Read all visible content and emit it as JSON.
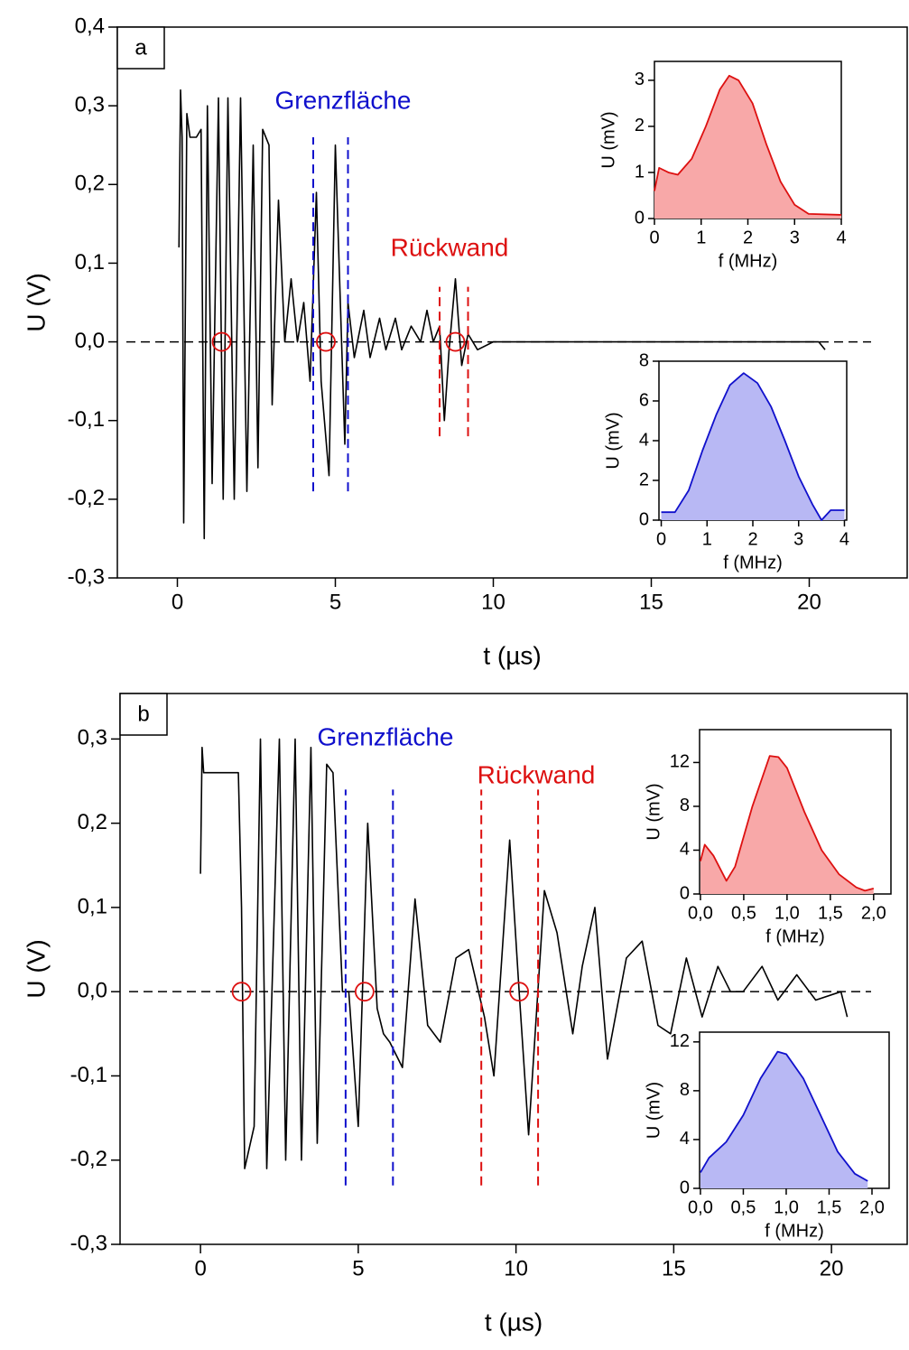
{
  "chart_data": [
    {
      "type": "line",
      "panel_label": "a",
      "xlabel": "t (µs)",
      "ylabel": "U (V)",
      "xlim": [
        -1.9,
        23.1
      ],
      "ylim": [
        -0.3,
        0.4
      ],
      "xticks": [
        0,
        5,
        10,
        15,
        20
      ],
      "yticks": [
        {
          "value": -0.3,
          "label": "-0,3"
        },
        {
          "value": -0.2,
          "label": "-0,2"
        },
        {
          "value": -0.1,
          "label": "-0,1"
        },
        {
          "value": 0,
          "label": "0,0"
        },
        {
          "value": 0.1,
          "label": "0,1"
        },
        {
          "value": 0.2,
          "label": "0,2"
        },
        {
          "value": 0.3,
          "label": "0,3"
        },
        {
          "value": 0.4,
          "label": "0,4"
        }
      ],
      "zero_line": true,
      "x": [
        0.05,
        0.1,
        0.15,
        0.2,
        0.3,
        0.4,
        0.6,
        0.75,
        0.85,
        0.95,
        1.1,
        1.3,
        1.45,
        1.6,
        1.8,
        2.0,
        2.2,
        2.4,
        2.55,
        2.7,
        2.9,
        3.0,
        3.2,
        3.4,
        3.6,
        3.8,
        4.0,
        4.2,
        4.4,
        4.55,
        4.8,
        5.0,
        5.3,
        5.4,
        5.6,
        5.9,
        6.1,
        6.4,
        6.6,
        6.9,
        7.1,
        7.4,
        7.7,
        7.9,
        8.1,
        8.3,
        8.45,
        8.6,
        8.8,
        9.0,
        9.2,
        9.5,
        10.0,
        14.0,
        20.3,
        20.5
      ],
      "series": [
        {
          "color": "#000000",
          "values": [
            0.12,
            0.32,
            0.26,
            -0.23,
            0.29,
            0.26,
            0.26,
            0.27,
            -0.25,
            0.3,
            -0.18,
            0.31,
            -0.2,
            0.31,
            -0.2,
            0.31,
            -0.19,
            0.25,
            -0.16,
            0.27,
            0.25,
            -0.08,
            0.18,
            0.0,
            0.08,
            0.0,
            0.05,
            -0.05,
            0.19,
            -0.05,
            -0.17,
            0.25,
            -0.13,
            0.05,
            -0.02,
            0.04,
            -0.02,
            0.03,
            -0.01,
            0.03,
            -0.01,
            0.02,
            0.0,
            0.04,
            0.0,
            0.02,
            -0.1,
            -0.01,
            0.08,
            -0.03,
            0.01,
            -0.01,
            0.0,
            0.0,
            0.0,
            -0.01
          ]
        }
      ],
      "annotations": [
        {
          "text": "Grenzfläche",
          "color": "#1010cc"
        },
        {
          "text": "Rückwand",
          "color": "#dd1010"
        }
      ],
      "vlines": [
        {
          "x": 4.3,
          "y": [
            -0.19,
            0.26
          ],
          "color": "#1010cc"
        },
        {
          "x": 5.4,
          "y": [
            -0.19,
            0.26
          ],
          "color": "#1010cc"
        },
        {
          "x": 8.3,
          "y": [
            -0.12,
            0.07
          ],
          "color": "#dd1010"
        },
        {
          "x": 9.2,
          "y": [
            -0.12,
            0.07
          ],
          "color": "#dd1010"
        }
      ],
      "circles": [
        1.4,
        4.7,
        8.8
      ],
      "circle_color": "#dd1010"
    },
    {
      "type": "line",
      "xlabel": "f (MHz)",
      "ylabel": "U (mV)",
      "xlim": [
        0,
        4
      ],
      "ylim": [
        0,
        3.41
      ],
      "xticks": [
        0,
        1,
        2,
        3,
        4
      ],
      "yticks": [
        0,
        1,
        2,
        3
      ],
      "x": [
        0,
        0.1,
        0.3,
        0.5,
        0.8,
        1.1,
        1.4,
        1.6,
        1.8,
        2.1,
        2.4,
        2.7,
        3.0,
        3.3,
        4.0
      ],
      "series": [
        {
          "color": "#dd1010",
          "fill": "#f8a8a8",
          "values": [
            0.6,
            1.1,
            1.0,
            0.95,
            1.3,
            2.0,
            2.8,
            3.1,
            3.0,
            2.5,
            1.6,
            0.8,
            0.3,
            0.1,
            0.08
          ]
        }
      ]
    },
    {
      "type": "line",
      "xlabel": "f (MHz)",
      "ylabel": "U (mV)",
      "xlim": [
        -0.05,
        4.05
      ],
      "ylim": [
        0,
        8
      ],
      "xticks": [
        0,
        1,
        2,
        3,
        4
      ],
      "yticks": [
        0,
        2,
        4,
        6,
        8
      ],
      "x": [
        0,
        0.3,
        0.6,
        0.9,
        1.2,
        1.5,
        1.8,
        2.1,
        2.4,
        2.7,
        3.0,
        3.3,
        3.5,
        3.7,
        4.0
      ],
      "series": [
        {
          "color": "#1010cc",
          "fill": "#b8b8f4",
          "values": [
            0.4,
            0.4,
            1.5,
            3.5,
            5.3,
            6.8,
            7.4,
            6.9,
            5.7,
            4.0,
            2.2,
            0.8,
            0,
            0.5,
            0.5
          ]
        }
      ]
    },
    {
      "type": "line",
      "panel_label": "b",
      "xlabel": "t (µs)",
      "ylabel": "U (V)",
      "xlim": [
        -2.55,
        22.4
      ],
      "ylim": [
        -0.3,
        0.354
      ],
      "xticks": [
        0,
        5,
        10,
        15,
        20
      ],
      "yticks": [
        {
          "value": -0.3,
          "label": "-0,3"
        },
        {
          "value": -0.2,
          "label": "-0,2"
        },
        {
          "value": -0.1,
          "label": "-0,1"
        },
        {
          "value": 0,
          "label": "0,0"
        },
        {
          "value": 0.1,
          "label": "0,1"
        },
        {
          "value": 0.2,
          "label": "0,2"
        },
        {
          "value": 0.3,
          "label": "0,3"
        }
      ],
      "zero_line": true,
      "x": [
        0,
        0.05,
        0.1,
        1.2,
        1.3,
        1.4,
        1.7,
        1.9,
        2.1,
        2.5,
        2.7,
        3.0,
        3.2,
        3.5,
        3.7,
        4.0,
        4.2,
        4.5,
        4.7,
        5.0,
        5.3,
        5.6,
        5.8,
        6.0,
        6.4,
        6.8,
        7.2,
        7.6,
        8.1,
        8.5,
        9.0,
        9.3,
        9.8,
        10.1,
        10.4,
        10.9,
        11.3,
        11.8,
        12.1,
        12.5,
        12.9,
        13.5,
        14.0,
        14.5,
        14.9,
        15.4,
        15.9,
        16.4,
        16.8,
        17.2,
        17.8,
        18.3,
        18.9,
        19.5,
        20.3,
        20.5
      ],
      "series": [
        {
          "color": "#000000",
          "values": [
            0.14,
            0.29,
            0.26,
            0.26,
            0.1,
            -0.21,
            -0.16,
            0.3,
            -0.21,
            0.3,
            -0.2,
            0.3,
            -0.2,
            0.29,
            -0.18,
            0.27,
            0.26,
            0.0,
            0.0,
            -0.16,
            0.2,
            -0.02,
            -0.05,
            -0.06,
            -0.09,
            0.11,
            -0.04,
            -0.06,
            0.04,
            0.05,
            -0.03,
            -0.1,
            0.18,
            0.0,
            -0.17,
            0.12,
            0.07,
            -0.05,
            0.03,
            0.1,
            -0.08,
            0.04,
            0.06,
            -0.04,
            -0.05,
            0.04,
            -0.03,
            0.03,
            0.0,
            0.0,
            0.03,
            -0.01,
            0.02,
            -0.01,
            0.0,
            -0.03
          ]
        }
      ],
      "annotations": [
        {
          "text": "Grenzfläche",
          "color": "#1010cc"
        },
        {
          "text": "Rückwand",
          "color": "#dd1010"
        }
      ],
      "vlines": [
        {
          "x": 4.6,
          "y": [
            -0.23,
            0.24
          ],
          "color": "#1010cc"
        },
        {
          "x": 6.1,
          "y": [
            -0.23,
            0.24
          ],
          "color": "#1010cc"
        },
        {
          "x": 8.9,
          "y": [
            -0.23,
            0.24
          ],
          "color": "#dd1010"
        },
        {
          "x": 10.7,
          "y": [
            -0.23,
            0.24
          ],
          "color": "#dd1010"
        }
      ],
      "circles": [
        1.3,
        5.2,
        10.1
      ],
      "circle_color": "#dd1010"
    },
    {
      "type": "line",
      "xlabel": "f (MHz)",
      "ylabel": "U (mV)",
      "xlim": [
        -0.01,
        2.2
      ],
      "ylim": [
        0,
        15
      ],
      "xticks": [
        {
          "value": 0,
          "label": "0,0"
        },
        {
          "value": 0.5,
          "label": "0,5"
        },
        {
          "value": 1,
          "label": "1,0"
        },
        {
          "value": 1.5,
          "label": "1,5"
        },
        {
          "value": 2,
          "label": "2,0"
        }
      ],
      "yticks": [
        0,
        4,
        8,
        12
      ],
      "x": [
        0,
        0.05,
        0.15,
        0.3,
        0.4,
        0.6,
        0.8,
        0.9,
        1.0,
        1.2,
        1.4,
        1.6,
        1.8,
        1.9,
        2.0
      ],
      "series": [
        {
          "color": "#dd1010",
          "fill": "#f8a8a8",
          "values": [
            3,
            4.5,
            3.5,
            1.2,
            2.5,
            8,
            12.6,
            12.5,
            11.5,
            7.5,
            4,
            1.8,
            0.6,
            0.3,
            0.5
          ]
        }
      ]
    },
    {
      "type": "line",
      "xlabel": "f (MHz)",
      "ylabel": "U (mV)",
      "xlim": [
        -0.01,
        2.2
      ],
      "ylim": [
        0,
        12.8
      ],
      "xticks": [
        {
          "value": 0,
          "label": "0,0"
        },
        {
          "value": 0.5,
          "label": "0,5"
        },
        {
          "value": 1,
          "label": "1,0"
        },
        {
          "value": 1.5,
          "label": "1,5"
        },
        {
          "value": 2,
          "label": "2,0"
        }
      ],
      "yticks": [
        0,
        4,
        8,
        12
      ],
      "x": [
        0,
        0.1,
        0.3,
        0.5,
        0.7,
        0.9,
        1.0,
        1.2,
        1.4,
        1.6,
        1.8,
        1.95
      ],
      "series": [
        {
          "color": "#1010cc",
          "fill": "#b8b8f4",
          "values": [
            1.3,
            2.5,
            3.8,
            6,
            9,
            11.2,
            11,
            9,
            6,
            3,
            1.2,
            0.6
          ]
        }
      ]
    }
  ]
}
